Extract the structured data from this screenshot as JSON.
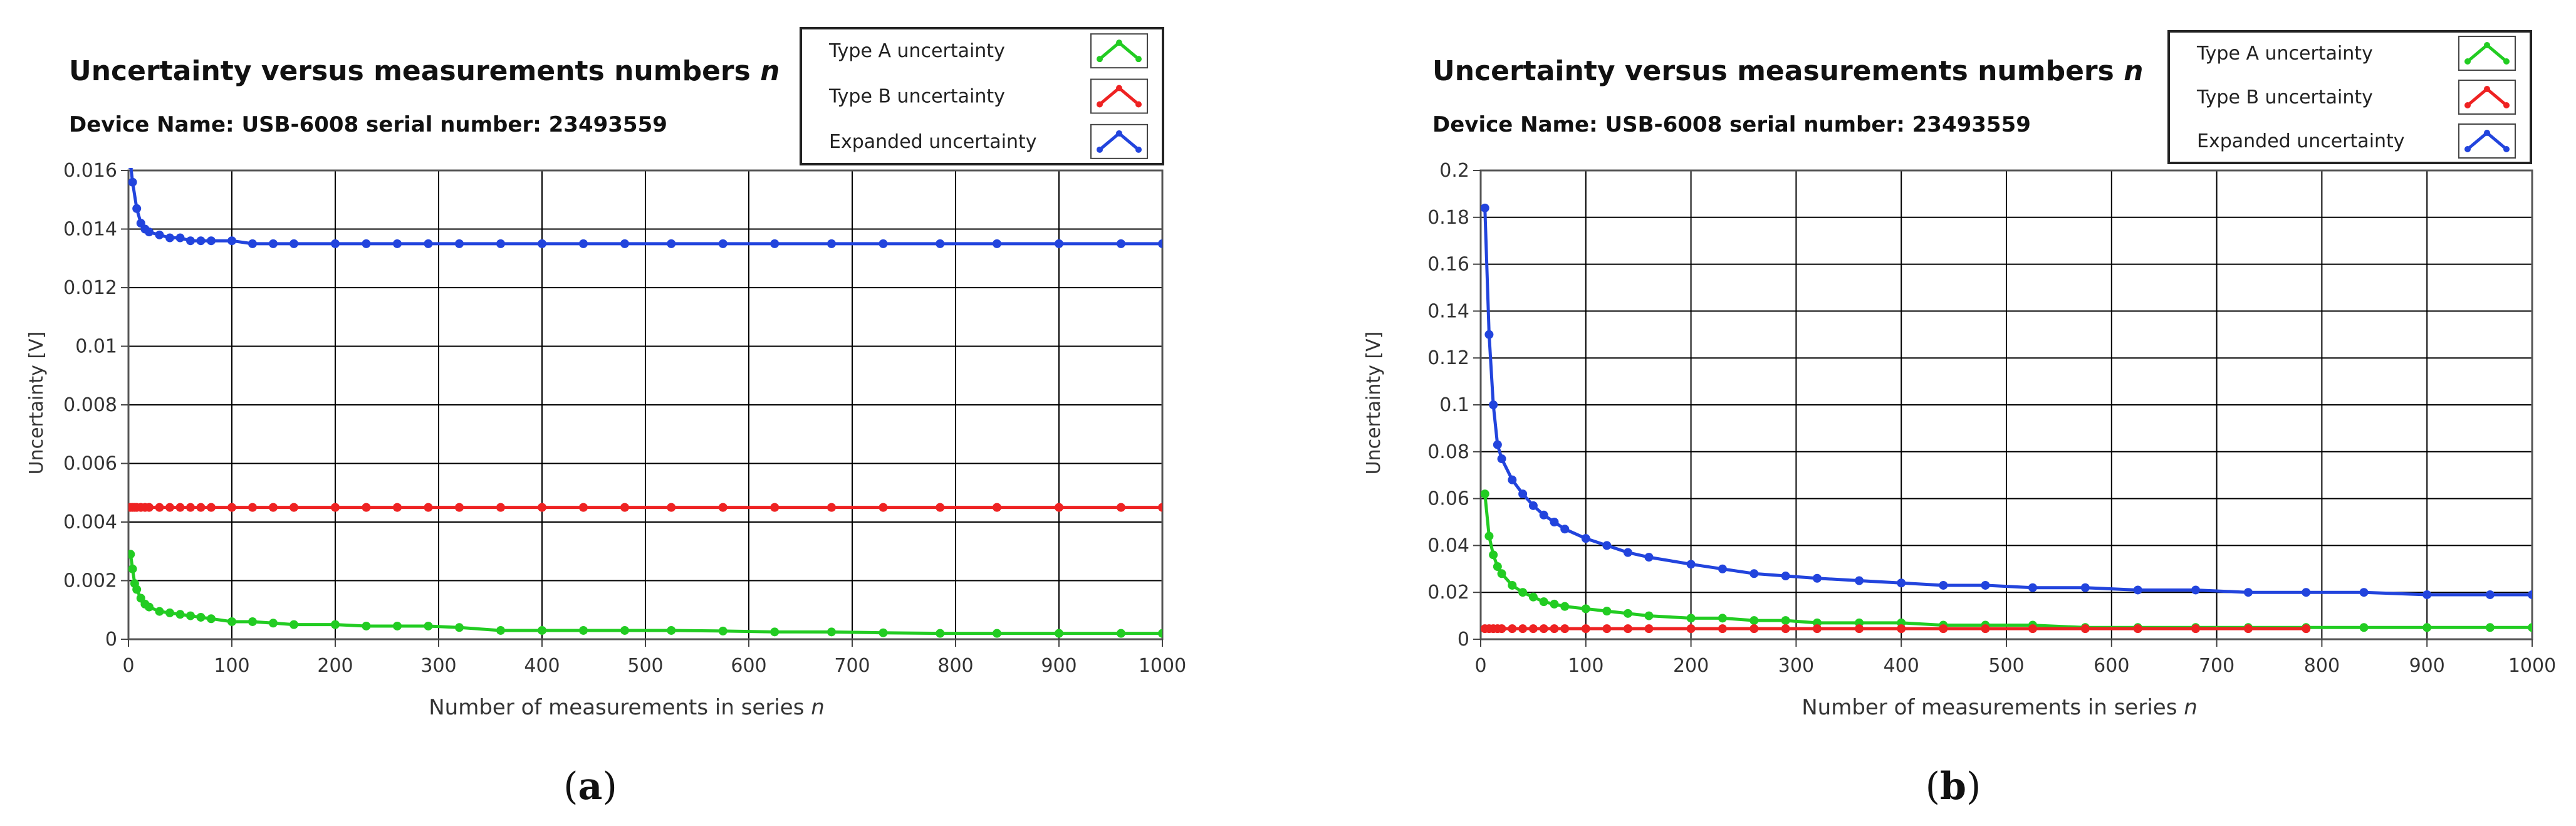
{
  "chart_data": [
    {
      "type": "line",
      "title": "Uncertainty versus measurements numbers",
      "title_var": "n",
      "subtitle": "Device Name: USB-6008 serial number: 23493559",
      "xlabel": "Number of measurements in series",
      "xlabel_var": "n",
      "ylabel": "Uncertainty [V]",
      "caption_letter": "a",
      "xlim": [
        0,
        1000
      ],
      "ylim": [
        0,
        0.016
      ],
      "xticks": [
        0,
        100,
        200,
        300,
        400,
        500,
        600,
        700,
        800,
        900,
        1000
      ],
      "xtick_labels": [
        "0",
        "100",
        "200",
        "300",
        "400",
        "500",
        "600",
        "700",
        "800",
        "900",
        "1000"
      ],
      "yticks": [
        0,
        0.002,
        0.004,
        0.006,
        0.008,
        0.01,
        0.012,
        0.014,
        0.016
      ],
      "ytick_labels": [
        "0",
        "0.002",
        "0.004",
        "0.006",
        "0.008",
        "0.01",
        "0.012",
        "0.014",
        "0.016"
      ],
      "grid": true,
      "legend_position": "top-right",
      "series": [
        {
          "name": "Type A uncertainty",
          "color": "#22cc22",
          "x": [
            2,
            4,
            6,
            8,
            12,
            16,
            20,
            30,
            40,
            50,
            60,
            70,
            80,
            100,
            120,
            140,
            160,
            200,
            230,
            260,
            290,
            320,
            360,
            400,
            440,
            480,
            525,
            575,
            625,
            680,
            730,
            785,
            840,
            900,
            960,
            1000
          ],
          "y": [
            0.0029,
            0.0024,
            0.0019,
            0.0017,
            0.0014,
            0.0012,
            0.0011,
            0.00095,
            0.0009,
            0.00085,
            0.0008,
            0.00075,
            0.0007,
            0.0006,
            0.0006,
            0.00055,
            0.0005,
            0.0005,
            0.00045,
            0.00045,
            0.00045,
            0.0004,
            0.0003,
            0.0003,
            0.0003,
            0.0003,
            0.0003,
            0.00028,
            0.00025,
            0.00025,
            0.00022,
            0.0002,
            0.0002,
            0.0002,
            0.0002,
            0.0002
          ]
        },
        {
          "name": "Type B uncertainty",
          "color": "#ee2222",
          "x": [
            2,
            4,
            6,
            8,
            12,
            16,
            20,
            30,
            40,
            50,
            60,
            70,
            80,
            100,
            120,
            140,
            160,
            200,
            230,
            260,
            290,
            320,
            360,
            400,
            440,
            480,
            525,
            575,
            625,
            680,
            730,
            785,
            840,
            900,
            960,
            1000
          ],
          "y": [
            0.0045,
            0.0045,
            0.0045,
            0.0045,
            0.0045,
            0.0045,
            0.0045,
            0.0045,
            0.0045,
            0.0045,
            0.0045,
            0.0045,
            0.0045,
            0.0045,
            0.0045,
            0.0045,
            0.0045,
            0.0045,
            0.0045,
            0.0045,
            0.0045,
            0.0045,
            0.0045,
            0.0045,
            0.0045,
            0.0045,
            0.0045,
            0.0045,
            0.0045,
            0.0045,
            0.0045,
            0.0045,
            0.0045,
            0.0045,
            0.0045,
            0.0045
          ]
        },
        {
          "name": "Expanded uncertainty",
          "color": "#2244dd",
          "x": [
            2,
            4,
            8,
            12,
            16,
            20,
            30,
            40,
            50,
            60,
            70,
            80,
            100,
            120,
            140,
            160,
            200,
            230,
            260,
            290,
            320,
            360,
            400,
            440,
            480,
            525,
            575,
            625,
            680,
            730,
            785,
            840,
            900,
            960,
            1000
          ],
          "y": [
            0.0162,
            0.0156,
            0.0147,
            0.0142,
            0.014,
            0.0139,
            0.0138,
            0.0137,
            0.0137,
            0.0136,
            0.0136,
            0.0136,
            0.0136,
            0.0135,
            0.0135,
            0.0135,
            0.0135,
            0.0135,
            0.0135,
            0.0135,
            0.0135,
            0.0135,
            0.0135,
            0.0135,
            0.0135,
            0.0135,
            0.0135,
            0.0135,
            0.0135,
            0.0135,
            0.0135,
            0.0135,
            0.0135,
            0.0135,
            0.0135
          ]
        }
      ]
    },
    {
      "type": "line",
      "title": "Uncertainty versus measurements numbers",
      "title_var": "n",
      "subtitle": "Device Name: USB-6008 serial number: 23493559",
      "xlabel": "Number of measurements in series",
      "xlabel_var": "n",
      "ylabel": "Uncertainty [V]",
      "caption_letter": "b",
      "xlim": [
        0,
        1000
      ],
      "ylim": [
        0,
        0.2
      ],
      "xticks": [
        0,
        100,
        200,
        300,
        400,
        500,
        600,
        700,
        800,
        900,
        1000
      ],
      "xtick_labels": [
        "0",
        "100",
        "200",
        "300",
        "400",
        "500",
        "600",
        "700",
        "800",
        "900",
        "1000"
      ],
      "yticks": [
        0,
        0.02,
        0.04,
        0.06,
        0.08,
        0.1,
        0.12,
        0.14,
        0.16,
        0.18,
        0.2
      ],
      "ytick_labels": [
        "0",
        "0.02",
        "0.04",
        "0.06",
        "0.08",
        "0.1",
        "0.12",
        "0.14",
        "0.16",
        "0.18",
        "0.2"
      ],
      "grid": true,
      "legend_position": "top-right",
      "series": [
        {
          "name": "Type A uncertainty",
          "color": "#22cc22",
          "x": [
            4,
            8,
            12,
            16,
            20,
            30,
            40,
            50,
            60,
            70,
            80,
            100,
            120,
            140,
            160,
            200,
            230,
            260,
            290,
            320,
            360,
            400,
            440,
            480,
            525,
            575,
            625,
            680,
            730,
            785,
            840,
            900,
            960,
            1000
          ],
          "y": [
            0.062,
            0.044,
            0.036,
            0.031,
            0.028,
            0.023,
            0.02,
            0.018,
            0.016,
            0.015,
            0.014,
            0.013,
            0.012,
            0.011,
            0.01,
            0.009,
            0.009,
            0.008,
            0.008,
            0.007,
            0.007,
            0.007,
            0.006,
            0.006,
            0.006,
            0.005,
            0.005,
            0.005,
            0.005,
            0.005,
            0.005,
            0.005,
            0.005,
            0.005
          ]
        },
        {
          "name": "Type B uncertainty",
          "color": "#ee2222",
          "x": [
            4,
            8,
            12,
            16,
            20,
            30,
            40,
            50,
            60,
            70,
            80,
            100,
            120,
            140,
            160,
            200,
            230,
            260,
            290,
            320,
            360,
            400,
            440,
            480,
            525,
            575,
            625,
            680,
            730,
            785
          ],
          "y": [
            0.0045,
            0.0045,
            0.0045,
            0.0045,
            0.0045,
            0.0045,
            0.0045,
            0.0045,
            0.0045,
            0.0045,
            0.0045,
            0.0045,
            0.0045,
            0.0045,
            0.0045,
            0.0045,
            0.0045,
            0.0045,
            0.0045,
            0.0045,
            0.0045,
            0.0045,
            0.0045,
            0.0045,
            0.0045,
            0.0045,
            0.0045,
            0.0045,
            0.0045,
            0.0045
          ]
        },
        {
          "name": "Expanded uncertainty",
          "color": "#2244dd",
          "x": [
            4,
            8,
            12,
            16,
            20,
            30,
            40,
            50,
            60,
            70,
            80,
            100,
            120,
            140,
            160,
            200,
            230,
            260,
            290,
            320,
            360,
            400,
            440,
            480,
            525,
            575,
            625,
            680,
            730,
            785,
            840,
            900,
            960,
            1000
          ],
          "y": [
            0.184,
            0.13,
            0.1,
            0.083,
            0.077,
            0.068,
            0.062,
            0.057,
            0.053,
            0.05,
            0.047,
            0.043,
            0.04,
            0.037,
            0.035,
            0.032,
            0.03,
            0.028,
            0.027,
            0.026,
            0.025,
            0.024,
            0.023,
            0.023,
            0.022,
            0.022,
            0.021,
            0.021,
            0.02,
            0.02,
            0.02,
            0.019,
            0.019,
            0.019
          ]
        }
      ]
    }
  ]
}
